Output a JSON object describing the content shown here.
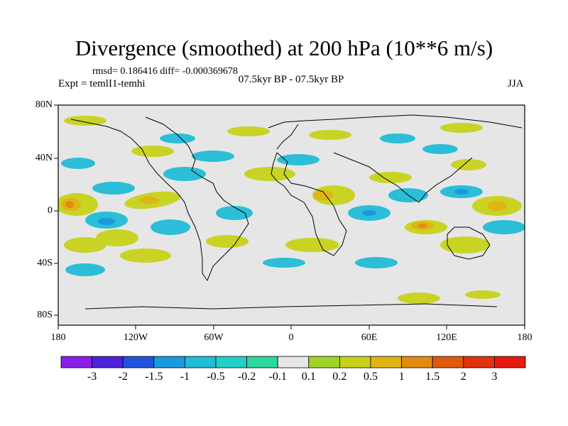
{
  "title": "Divergence (smoothed) at 200 hPa (10**6 m/s)",
  "stats": "rmsd= 0.186416  diff= -0.000369678",
  "experiment": "Expt = temlI1-temhi",
  "period": "07.5kyr BP - 07.5kyr BP",
  "season": "JJA",
  "lat_labels": [
    "80N",
    "40N",
    "0",
    "40S",
    "80S"
  ],
  "lon_labels": [
    "180",
    "120W",
    "60W",
    "0",
    "60E",
    "120E",
    "180"
  ],
  "colorbar": {
    "labels": [
      "-3",
      "-2",
      "-1.5",
      "-1",
      "-0.5",
      "-0.2",
      "-0.1",
      "0.1",
      "0.2",
      "0.5",
      "1",
      "1.5",
      "2",
      "3"
    ],
    "colors": [
      "#8a1fe8",
      "#4b22d8",
      "#2252dc",
      "#1a98e0",
      "#22bcd6",
      "#22d0c8",
      "#2cd8a0",
      "#e6e6e6",
      "#9ed228",
      "#c8d21a",
      "#e0b414",
      "#e08c10",
      "#e05a0c",
      "#e0320e",
      "#e61a10"
    ]
  },
  "colors": {
    "background": "#e6e6e6",
    "coast": "#000000"
  }
}
